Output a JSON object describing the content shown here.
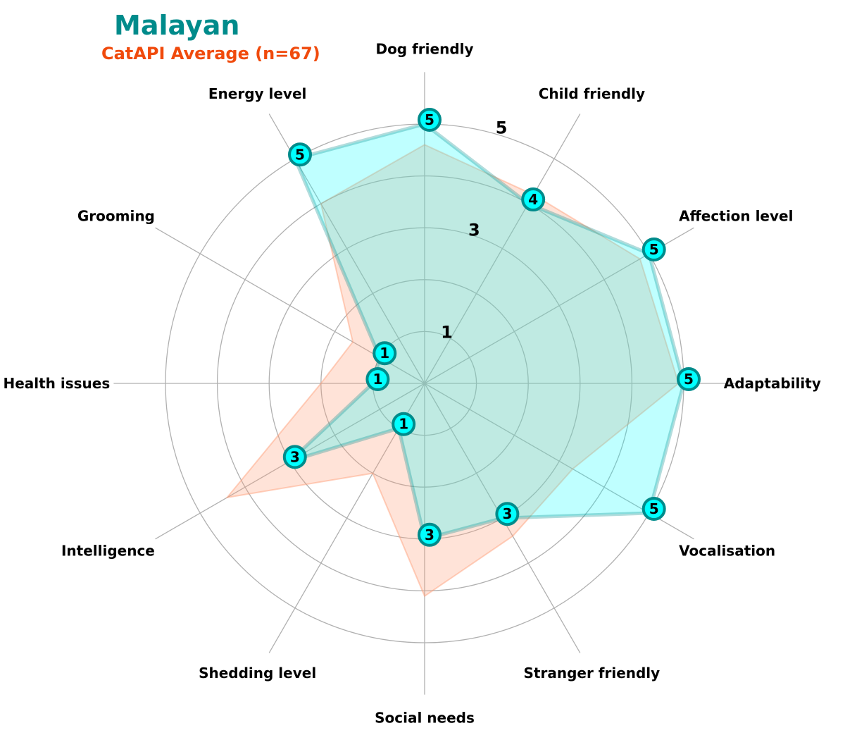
{
  "colors": {
    "breed": "#00ffff",
    "breed_edge": "#008b8b",
    "average": "#ff9a72",
    "average_edge": "#f04a0c",
    "grid": "#b0b0b0",
    "label": "#000000"
  },
  "chart_data": {
    "type": "radar",
    "title": "Malayan",
    "subtitle": "CatAPI Average (n=67)",
    "axes": [
      "Dog friendly",
      "Child friendly",
      "Affection level",
      "Adaptability",
      "Vocalisation",
      "Stranger friendly",
      "Social needs",
      "Shedding level",
      "Intelligence",
      "Health issues",
      "Grooming",
      "Energy level"
    ],
    "rlim": [
      0,
      5
    ],
    "rings": [
      1,
      2,
      3,
      4,
      5
    ],
    "ring_labels": [
      "1",
      "3",
      "5"
    ],
    "grid": true,
    "series": [
      {
        "name": "Malayan",
        "values": [
          5,
          4,
          5,
          5,
          5,
          3,
          3,
          1,
          3,
          1,
          1,
          5
        ],
        "point_labels": [
          "5",
          "4",
          "5",
          "5",
          "5",
          "3",
          "3",
          "1",
          "3",
          "1",
          "1",
          "5"
        ]
      },
      {
        "name": "CatAPI Average (n=67)",
        "values": [
          4.6,
          4.2,
          4.8,
          4.9,
          3.3,
          3.4,
          4.1,
          2.0,
          4.4,
          2.0,
          1.6,
          4.0
        ]
      }
    ]
  }
}
